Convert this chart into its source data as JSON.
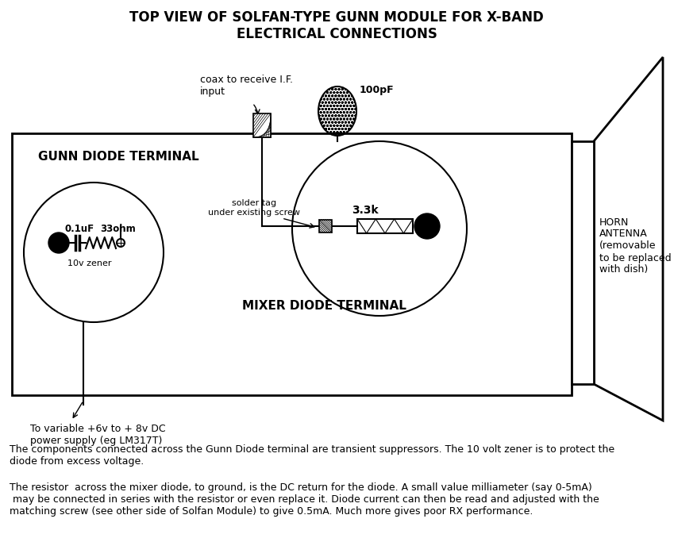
{
  "title_line1": "TOP VIEW OF SOLFAN-TYPE GUNN MODULE FOR X-BAND",
  "title_line2": "ELECTRICAL CONNECTIONS",
  "bg_color": "#ffffff",
  "desc_text1": "The components connected across the Gunn Diode terminal are transient suppressors. The 10 volt zener is to protect the\ndiode from excess voltage.",
  "desc_text2": "The resistor  across the mixer diode, to ground, is the DC return for the diode. A small value milliameter (say 0-5mA)\n may be connected in series with the resistor or even replace it. Diode current can then be read and adjusted with the\nmatching screw (see other side of Solfan Module) to give 0.5mA. Much more gives poor RX performance.",
  "label_gunn": "GUNN DIODE TERMINAL",
  "label_mixer": "MIXER DIODE TERMINAL",
  "label_horn": "HORN\nANTENNA\n(removable\nto be replaced\nwith dish)",
  "label_coax": "coax to receive I.F.\ninput",
  "label_100pF": "100pF",
  "label_01uF": "0.1uF",
  "label_33ohm": "33ohm",
  "label_solder": "solder tag\nunder existing screw",
  "label_33k": "3.3k",
  "label_10v": "10v zener",
  "label_power": "To variable +6v to + 8v DC\npower supply (eg LM317T)"
}
